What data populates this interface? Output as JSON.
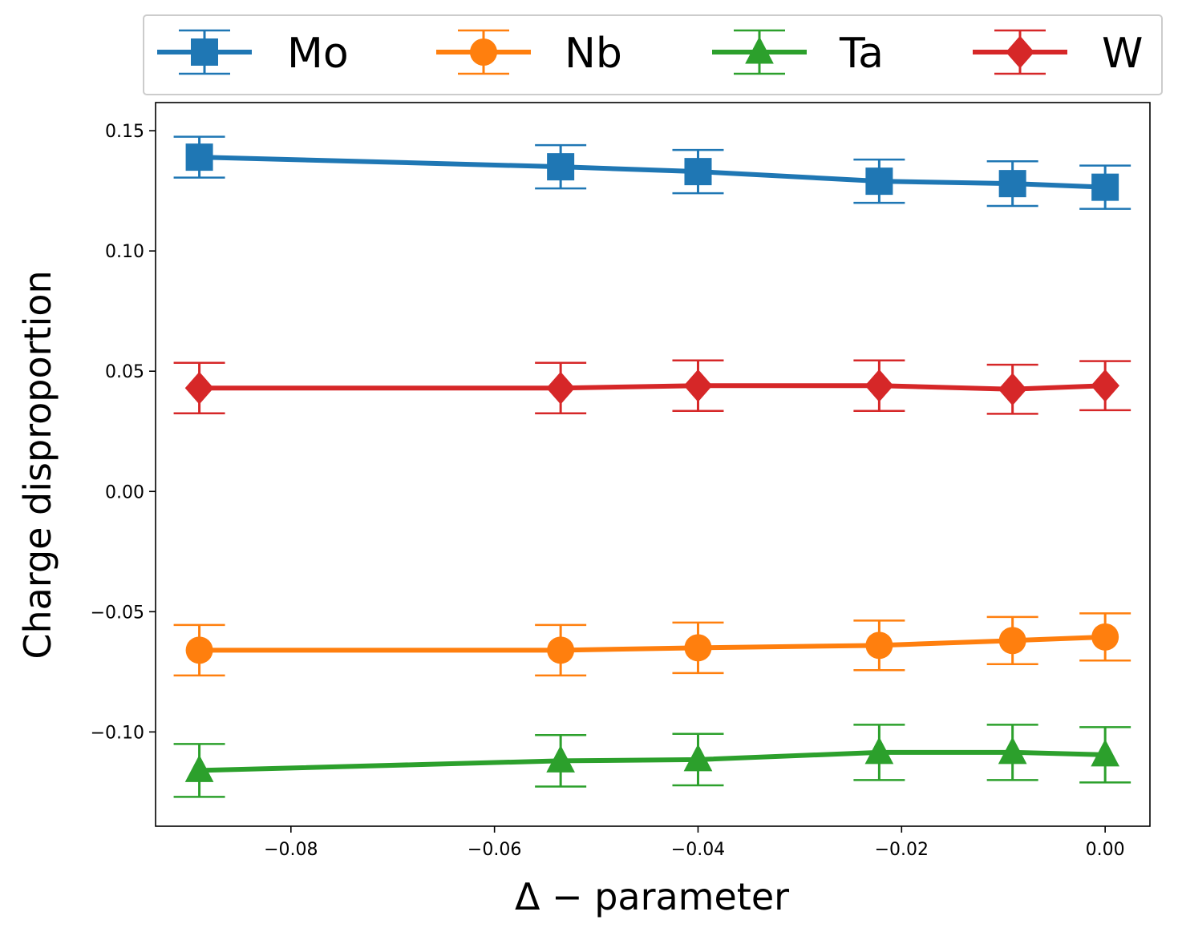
{
  "chart_data": {
    "type": "line",
    "xlabel": "Δ − parameter",
    "ylabel": "Charge disproportion",
    "xlim": [
      -0.0933,
      0.0044
    ],
    "ylim": [
      -0.1392,
      0.1617
    ],
    "xticks": [
      -0.08,
      -0.06,
      -0.04,
      -0.02,
      0.0
    ],
    "xtick_labels": [
      "−0.08",
      "−0.06",
      "−0.04",
      "−0.02",
      "0.00"
    ],
    "yticks": [
      0.15,
      0.1,
      0.05,
      0.0,
      -0.05,
      -0.1
    ],
    "ytick_labels": [
      "0.15",
      "0.10",
      "0.05",
      "0.00",
      "−0.05",
      "−0.10"
    ],
    "grid": false,
    "legend_position": "top",
    "x": [
      -0.089,
      -0.0535,
      -0.04,
      -0.0222,
      -0.0091,
      0.0
    ],
    "series": [
      {
        "name": "Mo",
        "color": "#1f77b4",
        "marker": "square",
        "values": [
          0.139,
          0.135,
          0.133,
          0.129,
          0.128,
          0.1265
        ],
        "errors": [
          0.0085,
          0.009,
          0.009,
          0.009,
          0.0093,
          0.009
        ]
      },
      {
        "name": "Nb",
        "color": "#ff7f0e",
        "marker": "circle",
        "values": [
          -0.066,
          -0.066,
          -0.065,
          -0.064,
          -0.062,
          -0.0605
        ],
        "errors": [
          0.0105,
          0.0105,
          0.0105,
          0.0103,
          0.0098,
          0.0098
        ]
      },
      {
        "name": "Ta",
        "color": "#2ca02c",
        "marker": "triangle",
        "values": [
          -0.116,
          -0.112,
          -0.1115,
          -0.1085,
          -0.1085,
          -0.1095
        ],
        "errors": [
          0.011,
          0.0107,
          0.0107,
          0.0115,
          0.0115,
          0.0115
        ]
      },
      {
        "name": "W",
        "color": "#d62728",
        "marker": "diamond",
        "values": [
          0.043,
          0.043,
          0.044,
          0.044,
          0.0425,
          0.044
        ],
        "errors": [
          0.0105,
          0.0105,
          0.0105,
          0.0105,
          0.0102,
          0.0102
        ]
      }
    ]
  }
}
